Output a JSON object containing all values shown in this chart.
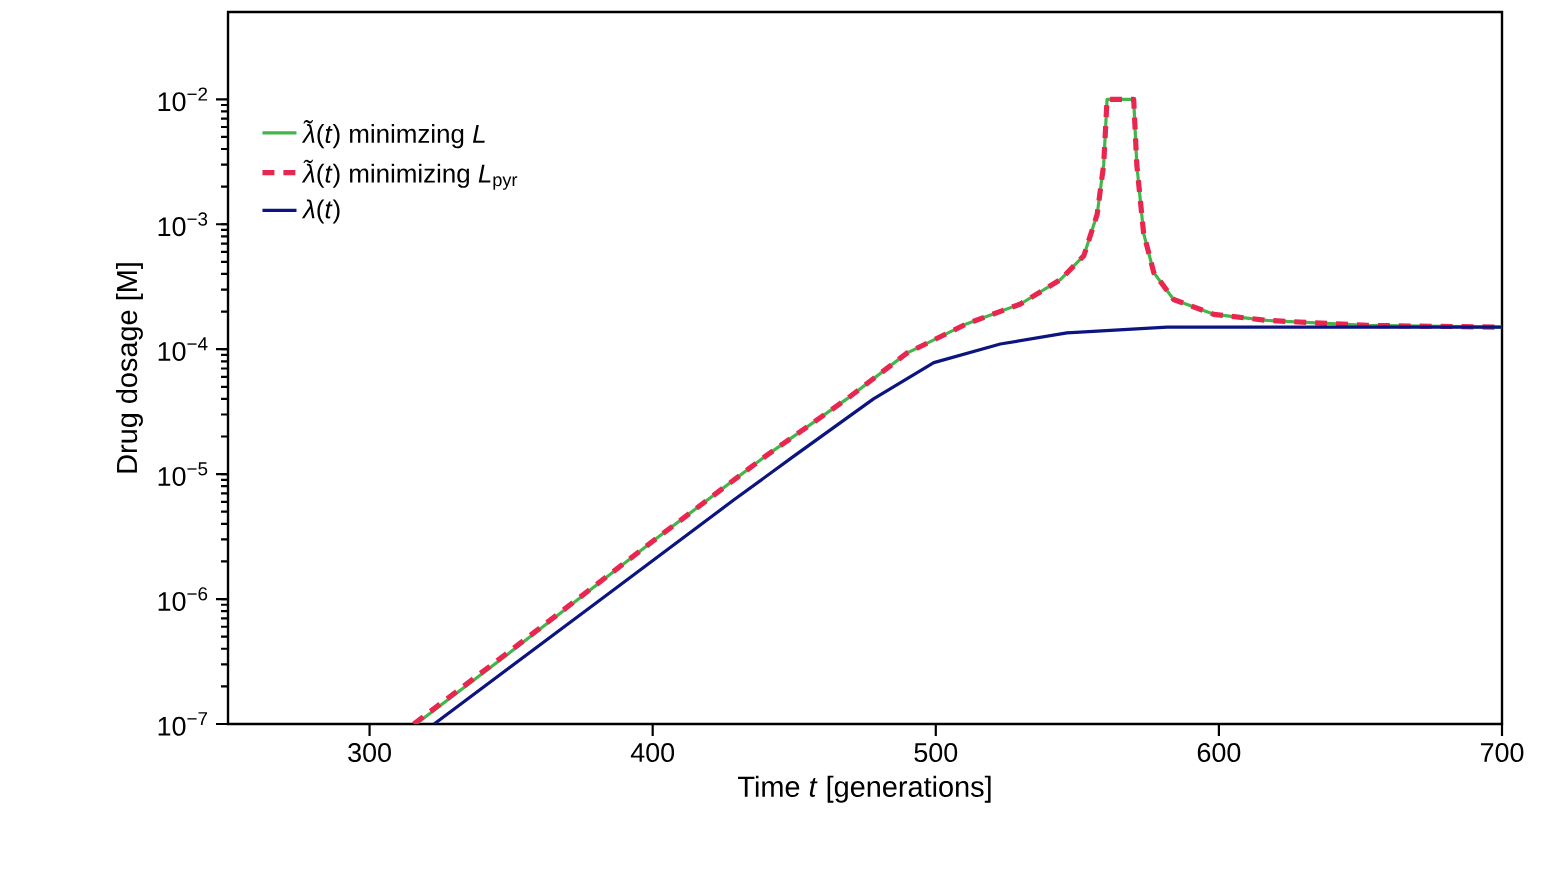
{
  "chart_data": {
    "type": "line",
    "xlabel": "Time *t* [generations]",
    "ylabel": "Drug dosage [M]",
    "log": "y",
    "xlim": [
      250,
      700
    ],
    "ylim": [
      1e-07,
      0.05
    ],
    "xticks": [
      300,
      400,
      500,
      600,
      700
    ],
    "yticks": [
      {
        "value": 1e-07,
        "label": "10$^{−7}$"
      },
      {
        "value": 1e-06,
        "label": "10$^{−6}$"
      },
      {
        "value": 1e-05,
        "label": "10$^{−5}$"
      },
      {
        "value": 0.0001,
        "label": "10$^{−4}$"
      },
      {
        "value": 0.001,
        "label": "10$^{−3}$"
      },
      {
        "value": 0.01,
        "label": "10$^{−2}$"
      }
    ],
    "legend": "upper left",
    "grid": false,
    "series": [
      {
        "name": "*λ̃*(*t*) minimzing *L*",
        "color": "#44b649",
        "line_style": "solid",
        "x": [
          316.4,
          350,
          400,
          440,
          468.6,
          489.8,
          511,
          529.9,
          544,
          552.3,
          557,
          559.3,
          560.5,
          569.9,
          571,
          573.4,
          577,
          584,
          598.2,
          617,
          652.3,
          700
        ],
        "values": [
          1e-07,
          3.8e-07,
          2.9e-06,
          1.4e-05,
          4e-05,
          9.3e-05,
          0.00016,
          0.00023,
          0.00036,
          0.00056,
          0.0012,
          0.003,
          0.01,
          0.01,
          0.003,
          0.00085,
          0.00041,
          0.00025,
          0.00019,
          0.00017,
          0.000155,
          0.00015
        ]
      },
      {
        "name": "*λ̃*(*t*) minimizing *L*$_{pyr}$",
        "color": "#e8264f",
        "line_style": "dashed",
        "x": [
          315.6,
          350,
          400,
          440,
          468.6,
          489.8,
          511,
          529.9,
          544,
          552.3,
          557,
          559.3,
          560.5,
          569.9,
          571,
          573.4,
          577,
          584,
          598.2,
          617,
          652.3,
          700
        ],
        "values": [
          1e-07,
          3.9e-07,
          2.9e-06,
          1.4e-05,
          4e-05,
          9.3e-05,
          0.00016,
          0.00023,
          0.00036,
          0.00056,
          0.0012,
          0.003,
          0.01,
          0.01,
          0.003,
          0.00085,
          0.00041,
          0.00025,
          0.00019,
          0.00017,
          0.000155,
          0.00015
        ]
      },
      {
        "name": "*λ*(*t*)",
        "color": "#0c1480",
        "line_style": "solid",
        "x": [
          322.8,
          380,
          428.6,
          450,
          478,
          499.3,
          522.8,
          546.3,
          581.7,
          617,
          700
        ],
        "values": [
          1e-07,
          9.3e-07,
          6.2e-06,
          1.4e-05,
          4e-05,
          7.8e-05,
          0.00011,
          0.000135,
          0.00015,
          0.00015,
          0.00015
        ]
      }
    ]
  }
}
